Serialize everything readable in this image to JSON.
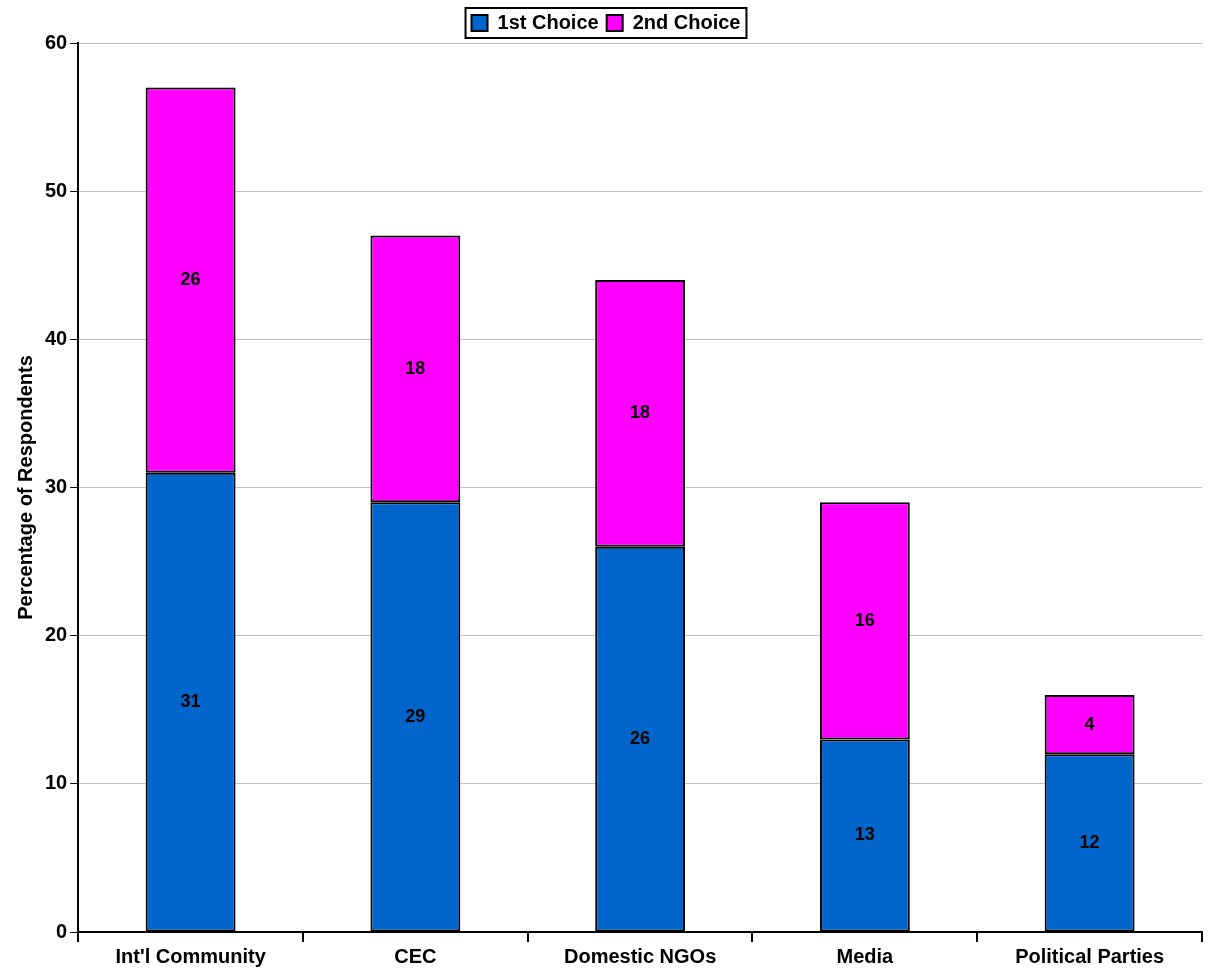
{
  "chart_data": {
    "type": "bar",
    "stacked": true,
    "ylabel": "Percentage of Respondents",
    "categories": [
      "Int'l Community",
      "CEC",
      "Domestic NGOs",
      "Media",
      "Political Parties"
    ],
    "series": [
      {
        "name": "1st Choice",
        "color": "#0066cc",
        "values": [
          31,
          29,
          26,
          13,
          12
        ]
      },
      {
        "name": "2nd Choice",
        "color": "#ff00ff",
        "values": [
          26,
          18,
          18,
          16,
          4
        ]
      }
    ],
    "ylim": [
      0,
      60
    ],
    "yticks": [
      0,
      10,
      20,
      30,
      40,
      50,
      60
    ],
    "grid": "y",
    "legend": "top",
    "data_labels": true
  }
}
